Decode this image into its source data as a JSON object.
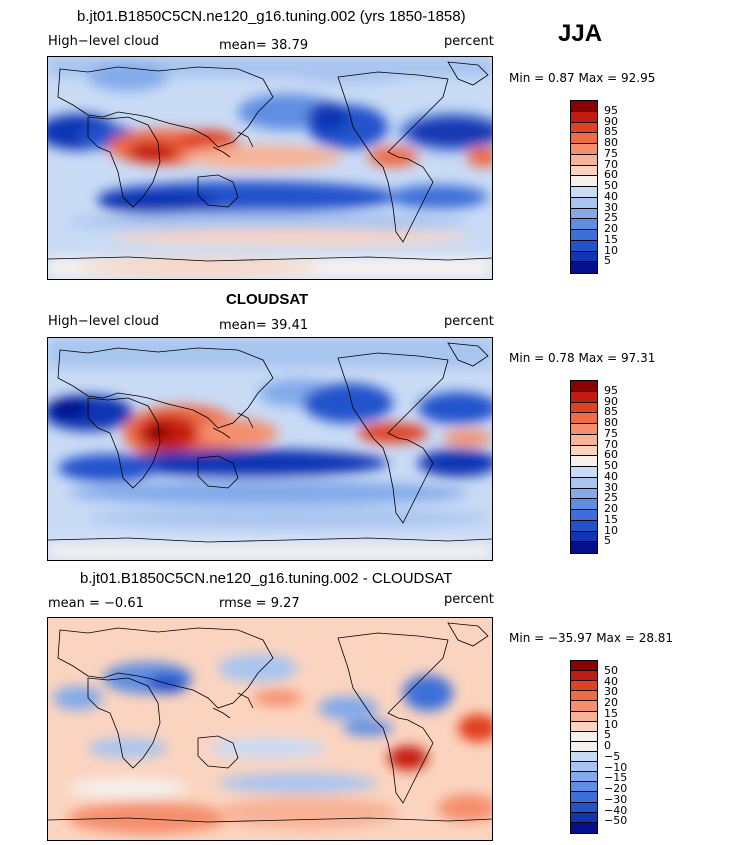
{
  "season": "JJA",
  "palette_model": [
    "#8b0000",
    "#c41a10",
    "#e2401f",
    "#f06a44",
    "#f58f6d",
    "#f8b295",
    "#fbd4bf",
    "#f4f1ee",
    "#c9dbf5",
    "#a7c5f0",
    "#82aaea",
    "#5e8ee2",
    "#3c6fd9",
    "#2153cc",
    "#1036b4",
    "#030f8c"
  ],
  "palette_diff": [
    "#8b0000",
    "#c41a10",
    "#e2401f",
    "#f06a44",
    "#f58f6d",
    "#f8b295",
    "#fbd4bf",
    "#f4f1ee",
    "#f4f1ee",
    "#c9dbf5",
    "#a7c5f0",
    "#82aaea",
    "#5e8ee2",
    "#3c6fd9",
    "#2153cc",
    "#1036b4",
    "#030f8c"
  ],
  "panels": [
    {
      "title": "b.jt01.B1850C5CN.ne120_g16.tuning.002 (yrs 1850-1858)",
      "left_label": "High−level cloud",
      "center_label": "mean=  38.79",
      "right_label": "percent",
      "minmax": "Min =    0.87 Max =   92.95",
      "ticks": [
        "95",
        "90",
        "85",
        "80",
        "75",
        "70",
        "60",
        "50",
        "40",
        "30",
        "25",
        "20",
        "15",
        "10",
        "5"
      ]
    },
    {
      "title": "CLOUDSAT",
      "left_label": "High−level cloud",
      "center_label": "mean=  39.41",
      "right_label": "percent",
      "minmax": "Min =    0.78 Max =   97.31",
      "ticks": [
        "95",
        "90",
        "85",
        "80",
        "75",
        "70",
        "60",
        "50",
        "40",
        "30",
        "25",
        "20",
        "15",
        "10",
        "5"
      ]
    },
    {
      "title": "b.jt01.B1850C5CN.ne120_g16.tuning.002 - CLOUDSAT",
      "left_label": "mean =   −0.61",
      "center_label": "rmse =    9.27",
      "right_label": "percent",
      "minmax": "Min = −35.97 Max =   28.81",
      "ticks": [
        "50",
        "40",
        "30",
        "20",
        "15",
        "10",
        "5",
        "0",
        "−5",
        "−10",
        "−15",
        "−20",
        "−30",
        "−40",
        "−50"
      ]
    }
  ]
}
